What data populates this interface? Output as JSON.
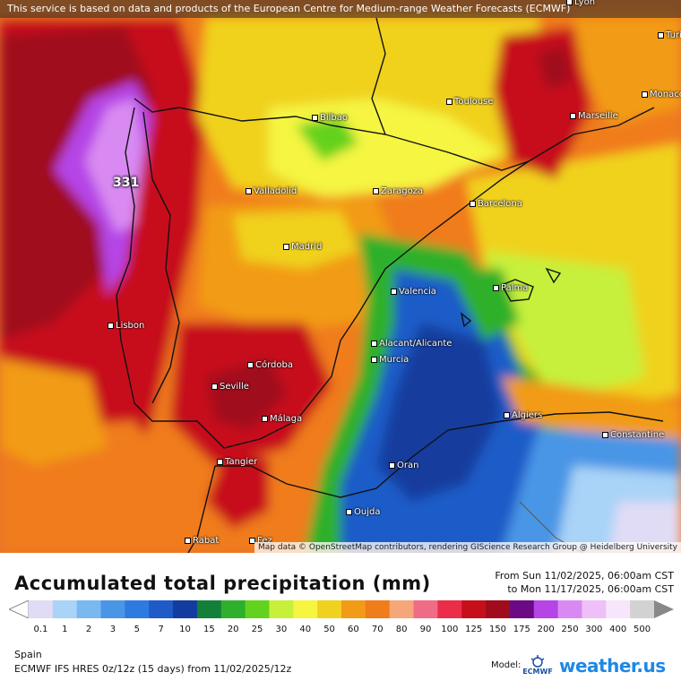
{
  "banner": "This service is based on data and products of the European Centre for Medium-range Weather Forecasts (ECMWF)",
  "attribution": "Map data © OpenStreetMap contributors, rendering GIScience Research Group @ Heidelberg University",
  "max_value": "331",
  "cities": [
    "Lyon",
    "Turin",
    "Monaco",
    "Marseille",
    "Toulouse",
    "Bilbao",
    "Zaragoza",
    "Barcelona",
    "Valladolid",
    "Madrid",
    "Valencia",
    "Palma",
    "Lisbon",
    "Alacant/Alicante",
    "Murcia",
    "Córdoba",
    "Seville",
    "Málaga",
    "Algiers",
    "Constantine",
    "Tangier",
    "Oran",
    "Oujda",
    "Rabat",
    "Fez"
  ],
  "title": "Accumulated total precipitation (mm)",
  "period": {
    "from": "From Sun 11/02/2025, 06:00am CST",
    "to": "to Mon 11/17/2025, 06:00am CST"
  },
  "legend": {
    "ticks": [
      "0.1",
      "1",
      "2",
      "3",
      "5",
      "7",
      "10",
      "15",
      "20",
      "25",
      "30",
      "40",
      "50",
      "60",
      "70",
      "80",
      "90",
      "100",
      "125",
      "150",
      "175",
      "200",
      "250",
      "300",
      "400",
      "500"
    ],
    "colors": [
      "#e1dcf5",
      "#a9d3f7",
      "#7ab8f0",
      "#4a96e6",
      "#2d7be0",
      "#1e5bc8",
      "#123d9e",
      "#13803a",
      "#2fb02c",
      "#63d21f",
      "#c6f03a",
      "#f5f542",
      "#f0d21e",
      "#f29b17",
      "#f07c1a",
      "#f5a77a",
      "#f06b85",
      "#eb2d4a",
      "#c70f1a",
      "#a00c1c",
      "#6b0a84",
      "#b545e6",
      "#d98af2",
      "#efbff7",
      "#f7e6fb",
      "#d2d2d2"
    ]
  },
  "footer": {
    "region": "Spain",
    "model": "ECMWF IFS HRES 0z/12z (15 days) from 11/02/2025/12z",
    "model_label": "Model:",
    "ecmwf": "ECMWF",
    "brand": "weather.us"
  }
}
